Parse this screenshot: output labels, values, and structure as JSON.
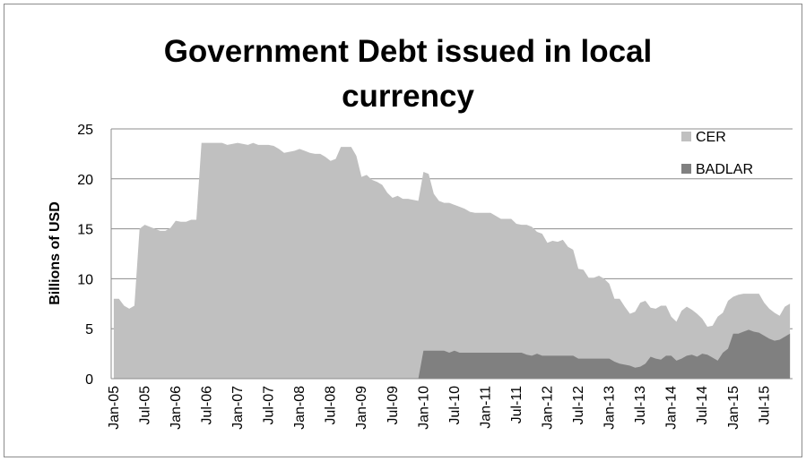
{
  "chart_data": {
    "type": "area",
    "title": "Government Debt issued in local currency",
    "xlabel": "",
    "ylabel": "Billions of USD",
    "ylim": [
      0,
      25
    ],
    "yticks": [
      0,
      5,
      10,
      15,
      20,
      25
    ],
    "grid": true,
    "stacked": false,
    "legend_position": "top-right",
    "x_tick_labels": [
      "Jan-05",
      "Jul-05",
      "Jan-06",
      "Jul-06",
      "Jan-07",
      "Jul-07",
      "Jan-08",
      "Jul-08",
      "Jan-09",
      "Jul-09",
      "Jan-10",
      "Jul-10",
      "Jan-11",
      "Jul-11",
      "Jan-12",
      "Jul-12",
      "Jan-13",
      "Jul-13",
      "Jan-14",
      "Jul-14",
      "Jan-15",
      "Jul-15"
    ],
    "x": [
      "2005-01",
      "2005-02",
      "2005-03",
      "2005-04",
      "2005-05",
      "2005-06",
      "2005-07",
      "2005-08",
      "2005-09",
      "2005-10",
      "2005-11",
      "2005-12",
      "2006-01",
      "2006-02",
      "2006-03",
      "2006-04",
      "2006-05",
      "2006-06",
      "2006-07",
      "2006-08",
      "2006-09",
      "2006-10",
      "2006-11",
      "2006-12",
      "2007-01",
      "2007-02",
      "2007-03",
      "2007-04",
      "2007-05",
      "2007-06",
      "2007-07",
      "2007-08",
      "2007-09",
      "2007-10",
      "2007-11",
      "2007-12",
      "2008-01",
      "2008-02",
      "2008-03",
      "2008-04",
      "2008-05",
      "2008-06",
      "2008-07",
      "2008-08",
      "2008-09",
      "2008-10",
      "2008-11",
      "2008-12",
      "2009-01",
      "2009-02",
      "2009-03",
      "2009-04",
      "2009-05",
      "2009-06",
      "2009-07",
      "2009-08",
      "2009-09",
      "2009-10",
      "2009-11",
      "2009-12",
      "2010-01",
      "2010-02",
      "2010-03",
      "2010-04",
      "2010-05",
      "2010-06",
      "2010-07",
      "2010-08",
      "2010-09",
      "2010-10",
      "2010-11",
      "2010-12",
      "2011-01",
      "2011-02",
      "2011-03",
      "2011-04",
      "2011-05",
      "2011-06",
      "2011-07",
      "2011-08",
      "2011-09",
      "2011-10",
      "2011-11",
      "2011-12",
      "2012-01",
      "2012-02",
      "2012-03",
      "2012-04",
      "2012-05",
      "2012-06",
      "2012-07",
      "2012-08",
      "2012-09",
      "2012-10",
      "2012-11",
      "2012-12",
      "2013-01",
      "2013-02",
      "2013-03",
      "2013-04",
      "2013-05",
      "2013-06",
      "2013-07",
      "2013-08",
      "2013-09",
      "2013-10",
      "2013-11",
      "2013-12",
      "2014-01",
      "2014-02",
      "2014-03",
      "2014-04",
      "2014-05",
      "2014-06",
      "2014-07",
      "2014-08",
      "2014-09",
      "2014-10",
      "2014-11",
      "2014-12",
      "2015-01",
      "2015-02",
      "2015-03",
      "2015-04",
      "2015-05",
      "2015-06",
      "2015-07",
      "2015-08",
      "2015-09",
      "2015-10",
      "2015-11",
      "2015-12"
    ],
    "series": [
      {
        "name": "CER",
        "color": "#c0c0c0",
        "values": [
          8.0,
          8.0,
          7.3,
          7.0,
          7.3,
          15.0,
          15.4,
          15.2,
          15.0,
          14.8,
          14.8,
          15.1,
          15.8,
          15.7,
          15.7,
          15.9,
          15.9,
          23.6,
          23.6,
          23.6,
          23.6,
          23.6,
          23.4,
          23.5,
          23.6,
          23.5,
          23.4,
          23.6,
          23.4,
          23.4,
          23.4,
          23.3,
          23.0,
          22.6,
          22.7,
          22.8,
          23.0,
          22.8,
          22.6,
          22.5,
          22.5,
          22.2,
          21.8,
          22.0,
          23.2,
          23.2,
          23.2,
          22.3,
          20.2,
          20.4,
          19.9,
          19.7,
          19.4,
          18.6,
          18.1,
          18.3,
          18.0,
          18.0,
          17.9,
          17.8,
          20.7,
          20.5,
          18.5,
          17.8,
          17.6,
          17.6,
          17.4,
          17.2,
          17.0,
          16.7,
          16.6,
          16.6,
          16.6,
          16.6,
          16.3,
          16.0,
          16.0,
          16.0,
          15.5,
          15.4,
          15.4,
          15.2,
          14.7,
          14.5,
          13.6,
          13.8,
          13.7,
          13.9,
          13.2,
          12.9,
          11.0,
          10.9,
          10.1,
          10.1,
          10.3,
          10.0,
          9.5,
          8.0,
          8.0,
          7.2,
          6.5,
          6.7,
          7.6,
          7.8,
          7.1,
          7.0,
          7.3,
          7.3,
          6.2,
          5.7,
          6.8,
          7.2,
          6.9,
          6.5,
          6.0,
          5.2,
          5.3,
          6.2,
          6.6,
          7.8,
          8.2,
          8.4,
          8.5,
          8.5,
          8.5,
          8.5,
          7.6,
          7.0,
          6.6,
          6.3,
          7.2,
          7.5
        ]
      },
      {
        "name": "BADLAR",
        "color": "#808080",
        "values": [
          0,
          0,
          0,
          0,
          0,
          0,
          0,
          0,
          0,
          0,
          0,
          0,
          0,
          0,
          0,
          0,
          0,
          0,
          0,
          0,
          0,
          0,
          0,
          0,
          0,
          0,
          0,
          0,
          0,
          0,
          0,
          0,
          0,
          0,
          0,
          0,
          0,
          0,
          0,
          0,
          0,
          0,
          0,
          0,
          0,
          0,
          0,
          0,
          0,
          0,
          0,
          0,
          0,
          0,
          0,
          0,
          0,
          0,
          0,
          0,
          2.8,
          2.8,
          2.8,
          2.8,
          2.8,
          2.6,
          2.8,
          2.6,
          2.6,
          2.6,
          2.6,
          2.6,
          2.6,
          2.6,
          2.6,
          2.6,
          2.6,
          2.6,
          2.6,
          2.6,
          2.4,
          2.3,
          2.5,
          2.3,
          2.3,
          2.3,
          2.3,
          2.3,
          2.3,
          2.3,
          2.0,
          2.0,
          2.0,
          2.0,
          2.0,
          2.0,
          2.0,
          1.7,
          1.5,
          1.4,
          1.3,
          1.1,
          1.2,
          1.5,
          2.2,
          2.0,
          1.9,
          2.3,
          2.3,
          1.8,
          2.0,
          2.3,
          2.4,
          2.2,
          2.5,
          2.4,
          2.1,
          1.8,
          2.6,
          3.0,
          4.5,
          4.5,
          4.7,
          4.9,
          4.7,
          4.6,
          4.3,
          4.0,
          3.8,
          3.9,
          4.2,
          4.5
        ]
      }
    ]
  }
}
